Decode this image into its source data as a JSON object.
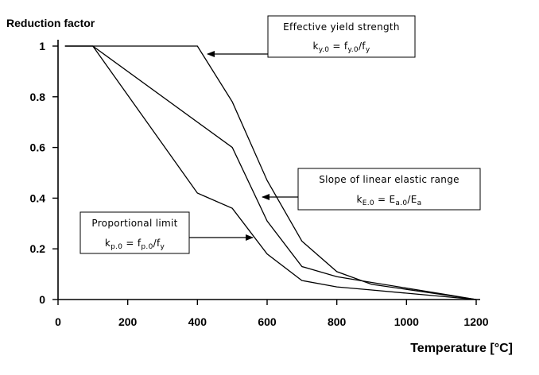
{
  "chart_data": {
    "type": "line",
    "ylabel": "Reduction factor",
    "xlabel": "Temperature [°C]",
    "xlim": [
      0,
      1200
    ],
    "ylim": [
      0,
      1
    ],
    "x_ticks": [
      "0",
      "200",
      "400",
      "600",
      "800",
      "1000",
      "1200"
    ],
    "x_tick_values": [
      0,
      200,
      400,
      600,
      800,
      1000,
      1200
    ],
    "y_ticks": [
      "0",
      "0.2",
      "0.4",
      "0.6",
      "0.8",
      "1"
    ],
    "y_tick_values": [
      0,
      0.2,
      0.4,
      0.6,
      0.8,
      1
    ],
    "grid": false,
    "series": [
      {
        "name": "Effective yield strength",
        "id": "effective-yield-strength",
        "x": [
          20,
          100,
          400,
          500,
          600,
          700,
          800,
          900,
          1000,
          1100,
          1200
        ],
        "y": [
          1.0,
          1.0,
          1.0,
          0.78,
          0.47,
          0.23,
          0.11,
          0.06,
          0.04,
          0.02,
          0.0
        ]
      },
      {
        "name": "Slope of linear elastic range",
        "id": "slope-linear-elastic-range",
        "x": [
          20,
          100,
          500,
          600,
          700,
          800,
          900,
          1000,
          1100,
          1200
        ],
        "y": [
          1.0,
          1.0,
          0.6,
          0.31,
          0.13,
          0.09,
          0.0675,
          0.045,
          0.0225,
          0.0
        ]
      },
      {
        "name": "Proportional limit",
        "id": "proportional-limit",
        "x": [
          20,
          100,
          400,
          500,
          600,
          700,
          800,
          900,
          1000,
          1100,
          1200
        ],
        "y": [
          1.0,
          1.0,
          0.42,
          0.36,
          0.18,
          0.075,
          0.05,
          0.0375,
          0.025,
          0.0125,
          0.0
        ]
      }
    ],
    "annotations": [
      {
        "id": "effective-yield-strength",
        "title": "Effective yield strength",
        "formula": [
          {
            "t": "k",
            "s": "n"
          },
          {
            "t": "y.0",
            "s": "sub"
          },
          {
            "t": " = f",
            "s": "n"
          },
          {
            "t": "y.0",
            "s": "sub"
          },
          {
            "t": "/f",
            "s": "n"
          },
          {
            "t": "y",
            "s": "sub"
          }
        ],
        "points_to": [
          400,
          0.97
        ]
      },
      {
        "id": "slope-linear-elastic-range",
        "title": "Slope of linear elastic range",
        "formula": [
          {
            "t": "k",
            "s": "n"
          },
          {
            "t": "E.0",
            "s": "sub"
          },
          {
            "t": " = E",
            "s": "n"
          },
          {
            "t": "a.0",
            "s": "sub"
          },
          {
            "t": "/E",
            "s": "n"
          },
          {
            "t": "a",
            "s": "sub"
          }
        ],
        "points_to": [
          575,
          0.4
        ]
      },
      {
        "id": "proportional-limit",
        "title": "Proportional limit",
        "formula": [
          {
            "t": "k",
            "s": "n"
          },
          {
            "t": "p.0",
            "s": "sub"
          },
          {
            "t": " = f",
            "s": "n"
          },
          {
            "t": "p.0",
            "s": "sub"
          },
          {
            "t": "/f",
            "s": "n"
          },
          {
            "t": "y",
            "s": "sub"
          }
        ],
        "points_to": [
          560,
          0.24
        ]
      }
    ]
  }
}
